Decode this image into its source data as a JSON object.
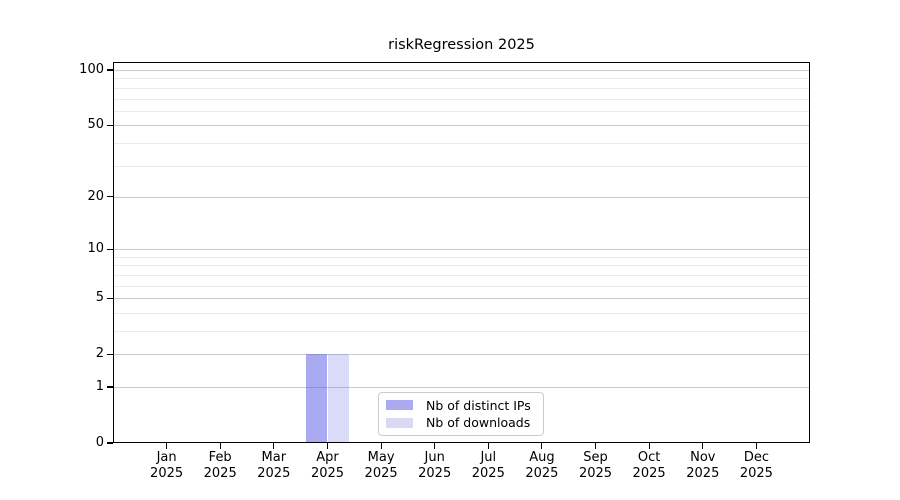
{
  "chart_data": {
    "type": "bar",
    "title": "riskRegression 2025",
    "categories": [
      "Jan 2025",
      "Feb 2025",
      "Mar 2025",
      "Apr 2025",
      "May 2025",
      "Jun 2025",
      "Jul 2025",
      "Aug 2025",
      "Sep 2025",
      "Oct 2025",
      "Nov 2025",
      "Dec 2025"
    ],
    "series": [
      {
        "name": "Nb of distinct IPs",
        "color": "rgba(85,85,229,0.5)",
        "solid_color": "#aaaaf2",
        "values": [
          0,
          0,
          0,
          2,
          0,
          0,
          0,
          0,
          0,
          0,
          0,
          0
        ]
      },
      {
        "name": "Nb of downloads",
        "color": "rgba(85,85,229,0.22)",
        "solid_color": "#d9d9f6",
        "values": [
          0,
          0,
          0,
          2,
          0,
          0,
          0,
          0,
          0,
          0,
          0,
          0
        ]
      }
    ],
    "yscale": "log1p",
    "yticks": [
      0,
      1,
      2,
      5,
      10,
      20,
      50,
      100
    ],
    "yminor": [
      3,
      4,
      6,
      7,
      8,
      9,
      30,
      40,
      60,
      70,
      80,
      90
    ],
    "ylim": [
      0,
      110
    ],
    "xlabel": "",
    "ylabel": "",
    "grid": true,
    "legend_position": "lower center",
    "colors": {
      "axis": "#000000",
      "grid_major": "#cbcbcb",
      "grid_minor": "#eaeaea",
      "legend_border": "#cccccc",
      "background": "#ffffff"
    }
  }
}
